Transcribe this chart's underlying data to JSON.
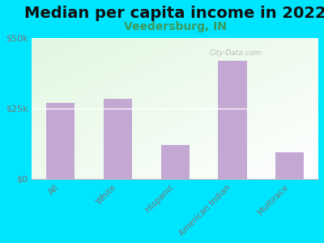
{
  "title": "Median per capita income in 2022",
  "subtitle": "Veedersburg, IN",
  "categories": [
    "All",
    "White",
    "Hispanic",
    "American Indian",
    "Multirace"
  ],
  "values": [
    27000,
    28500,
    12000,
    42000,
    9500
  ],
  "bar_color": "#c4a8d4",
  "background_outer": "#00e5ff",
  "ylim": [
    0,
    50000
  ],
  "yticks": [
    0,
    25000,
    50000
  ],
  "ytick_labels": [
    "$0",
    "$25k",
    "$50k"
  ],
  "title_fontsize": 14,
  "subtitle_fontsize": 10,
  "subtitle_color": "#3a9a5c",
  "tick_color": "#777777",
  "watermark": "City-Data.com"
}
